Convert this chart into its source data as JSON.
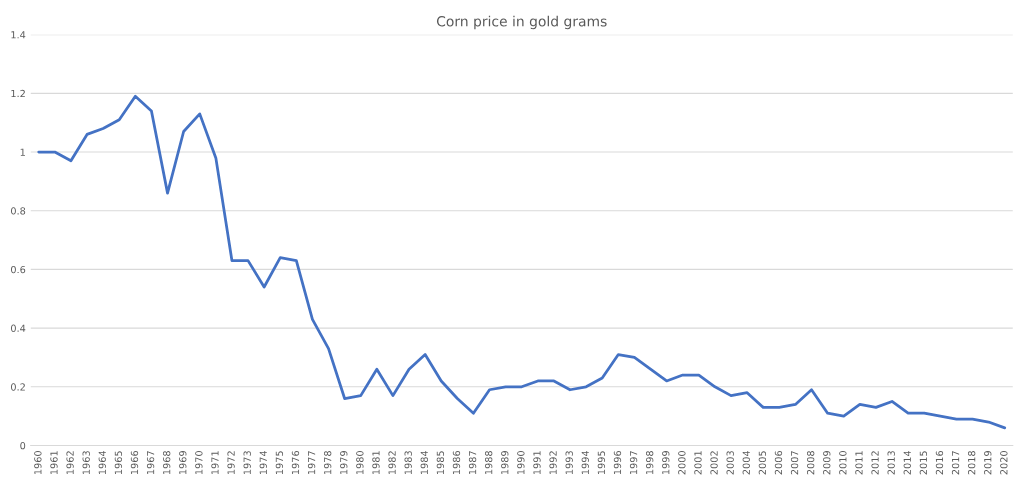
{
  "chart_data": {
    "type": "line",
    "title": "Corn price in gold grams",
    "categories": [
      "1960",
      "1961",
      "1962",
      "1963",
      "1964",
      "1965",
      "1966",
      "1967",
      "1968",
      "1969",
      "1970",
      "1971",
      "1972",
      "1973",
      "1974",
      "1975",
      "1976",
      "1977",
      "1978",
      "1979",
      "1980",
      "1981",
      "1982",
      "1983",
      "1984",
      "1985",
      "1986",
      "1987",
      "1988",
      "1989",
      "1990",
      "1991",
      "1992",
      "1993",
      "1994",
      "1995",
      "1996",
      "1997",
      "1998",
      "1999",
      "2000",
      "2001",
      "2002",
      "2003",
      "2004",
      "2005",
      "2006",
      "2007",
      "2008",
      "2009",
      "2010",
      "2011",
      "2012",
      "2013",
      "2014",
      "2015",
      "2016",
      "2017",
      "2018",
      "2019",
      "2020"
    ],
    "series": [
      {
        "color": "#4472c4",
        "values": [
          1.0,
          1.0,
          0.97,
          1.06,
          1.08,
          1.11,
          1.19,
          1.14,
          0.86,
          1.07,
          1.13,
          0.98,
          0.63,
          0.63,
          0.54,
          0.64,
          0.63,
          0.43,
          0.33,
          0.16,
          0.17,
          0.26,
          0.17,
          0.26,
          0.31,
          0.22,
          0.16,
          0.11,
          0.19,
          0.2,
          0.2,
          0.22,
          0.22,
          0.19,
          0.2,
          0.23,
          0.31,
          0.3,
          0.26,
          0.22,
          0.24,
          0.24,
          0.2,
          0.17,
          0.18,
          0.13,
          0.13,
          0.14,
          0.19,
          0.11,
          0.1,
          0.14,
          0.13,
          0.15,
          0.11,
          0.11,
          0.1,
          0.09,
          0.09,
          0.08,
          0.06
        ]
      }
    ],
    "ylim": [
      0,
      1.4
    ],
    "yticks": [
      0,
      0.2,
      0.4,
      0.6,
      0.8,
      1,
      1.2,
      1.4
    ],
    "grid": "y",
    "marker": "none",
    "line_style": "solid"
  }
}
